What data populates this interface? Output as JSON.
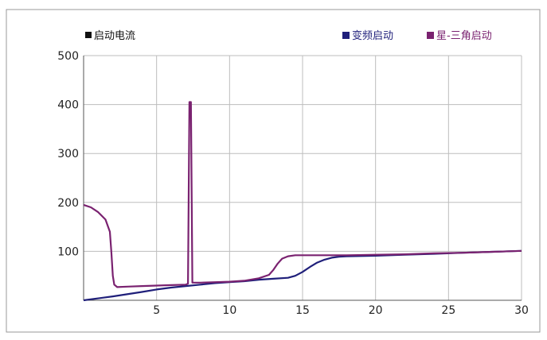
{
  "chart_data": {
    "type": "line",
    "title": "",
    "series_title": "启动电流",
    "xlabel": "",
    "ylabel": "",
    "xlim": [
      0,
      30
    ],
    "ylim": [
      0,
      500
    ],
    "x_ticks": [
      5,
      10,
      15,
      20,
      25,
      30
    ],
    "y_ticks": [
      100,
      200,
      300,
      400,
      500
    ],
    "grid": true,
    "legend_position": "top-right",
    "series": [
      {
        "name": "变频启动",
        "color": "#1f1f7a",
        "points": [
          [
            0,
            0
          ],
          [
            2,
            8
          ],
          [
            4,
            17
          ],
          [
            5,
            22
          ],
          [
            6,
            26
          ],
          [
            7,
            29
          ],
          [
            8,
            32
          ],
          [
            9,
            35
          ],
          [
            10,
            37
          ],
          [
            11,
            39
          ],
          [
            12,
            42
          ],
          [
            13,
            44
          ],
          [
            14,
            46
          ],
          [
            14.5,
            50
          ],
          [
            15,
            58
          ],
          [
            15.5,
            68
          ],
          [
            16,
            77
          ],
          [
            16.5,
            83
          ],
          [
            17,
            87
          ],
          [
            17.5,
            89
          ],
          [
            18,
            90
          ],
          [
            20,
            91
          ],
          [
            22,
            93
          ],
          [
            24,
            95
          ],
          [
            26,
            97
          ],
          [
            28,
            99
          ],
          [
            30,
            101
          ]
        ]
      },
      {
        "name": "星-三角启动",
        "color": "#7a2270",
        "points": [
          [
            0,
            195
          ],
          [
            0.5,
            190
          ],
          [
            1,
            180
          ],
          [
            1.5,
            165
          ],
          [
            1.8,
            140
          ],
          [
            1.9,
            100
          ],
          [
            2,
            50
          ],
          [
            2.1,
            32
          ],
          [
            2.3,
            27
          ],
          [
            3,
            28
          ],
          [
            4,
            29
          ],
          [
            5,
            30
          ],
          [
            6,
            31
          ],
          [
            7,
            32
          ],
          [
            7.15,
            34
          ],
          [
            7.25,
            405
          ],
          [
            7.35,
            405
          ],
          [
            7.45,
            36
          ],
          [
            8,
            36
          ],
          [
            9,
            37
          ],
          [
            10,
            38
          ],
          [
            11,
            40
          ],
          [
            12,
            45
          ],
          [
            12.7,
            52
          ],
          [
            13,
            62
          ],
          [
            13.3,
            75
          ],
          [
            13.6,
            85
          ],
          [
            14,
            90
          ],
          [
            14.5,
            92
          ],
          [
            15,
            92
          ],
          [
            16,
            92
          ],
          [
            18,
            92
          ],
          [
            20,
            93
          ],
          [
            22,
            94
          ],
          [
            24,
            96
          ],
          [
            26,
            97
          ],
          [
            28,
            99
          ],
          [
            30,
            101
          ]
        ]
      }
    ]
  }
}
